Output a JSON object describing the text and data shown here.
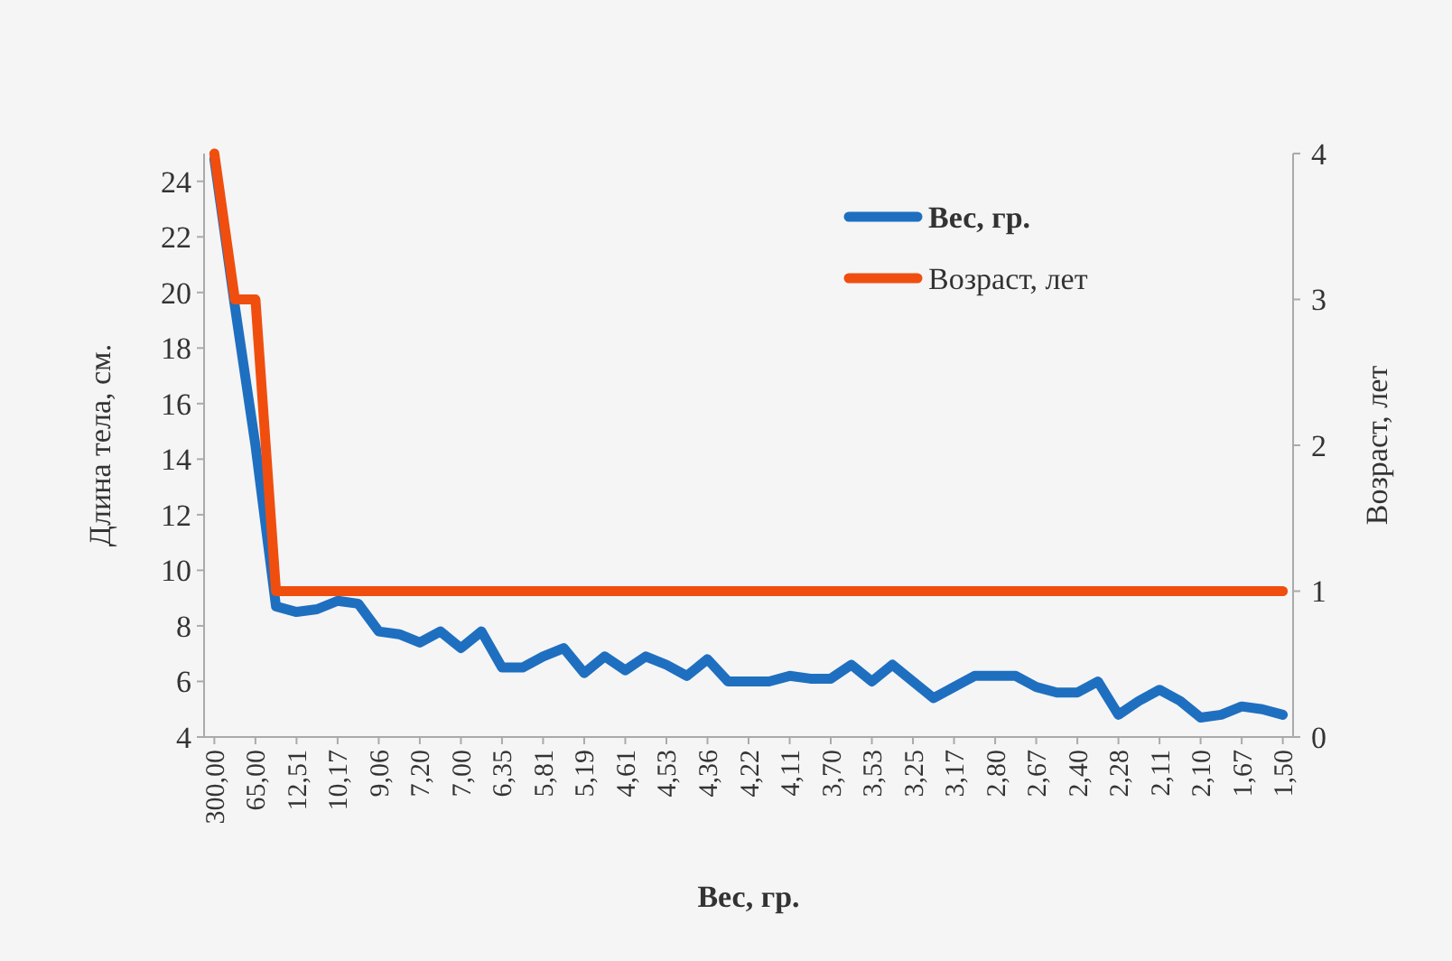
{
  "chart_data": {
    "type": "line",
    "xlabel": "Вес, гр.",
    "ylabel": "Длина тела, см.",
    "y2label": "Возраст, лет",
    "categories": [
      "300,00",
      null,
      "65,00",
      null,
      "12,51",
      null,
      "10,17",
      null,
      "9,06",
      null,
      "7,20",
      null,
      "7,00",
      null,
      "6,35",
      null,
      "5,81",
      null,
      "5,19",
      null,
      "4,61",
      null,
      "4,53",
      null,
      "4,36",
      null,
      "4,22",
      null,
      "4,11",
      null,
      "3,70",
      null,
      "3,53",
      null,
      "3,25",
      null,
      "3,17",
      null,
      "2,80",
      null,
      "2,67",
      null,
      "2,40",
      null,
      "2,28",
      null,
      "2,11",
      null,
      "2,10",
      null,
      "1,67",
      null,
      "1,50"
    ],
    "series": [
      {
        "name": "Вес, гр.",
        "color": "#1f6fc0",
        "values": [
          24.8,
          19.5,
          14.5,
          8.7,
          8.5,
          8.6,
          8.9,
          8.8,
          7.8,
          7.7,
          7.4,
          7.8,
          7.2,
          7.8,
          6.5,
          6.5,
          6.9,
          7.2,
          6.3,
          6.9,
          6.4,
          6.9,
          6.6,
          6.2,
          6.8,
          6.0,
          6.0,
          6.0,
          6.2,
          6.1,
          6.1,
          6.6,
          6.0,
          6.6,
          6.0,
          5.4,
          5.8,
          6.2,
          6.2,
          6.2,
          5.8,
          5.6,
          5.6,
          6.0,
          4.8,
          5.3,
          5.7,
          5.3,
          4.7,
          4.8,
          5.1,
          5.0,
          4.8
        ]
      },
      {
        "name": "Возраст, лет",
        "color": "#f04e0f",
        "axis": "y2",
        "values": [
          4,
          3,
          3,
          1,
          1,
          1,
          1,
          1,
          1,
          1,
          1,
          1,
          1,
          1,
          1,
          1,
          1,
          1,
          1,
          1,
          1,
          1,
          1,
          1,
          1,
          1,
          1,
          1,
          1,
          1,
          1,
          1,
          1,
          1,
          1,
          1,
          1,
          1,
          1,
          1,
          1,
          1,
          1,
          1,
          1,
          1,
          1,
          1,
          1,
          1,
          1,
          1,
          1
        ]
      }
    ],
    "ylim": [
      4,
      25
    ],
    "yticks": [
      4,
      6,
      8,
      10,
      12,
      14,
      16,
      18,
      20,
      22,
      24
    ],
    "y2lim": [
      0,
      4
    ],
    "y2ticks": [
      0,
      1,
      2,
      3,
      4
    ],
    "legend": "top right",
    "grid": false,
    "marker": "none",
    "line_style": "solid"
  }
}
